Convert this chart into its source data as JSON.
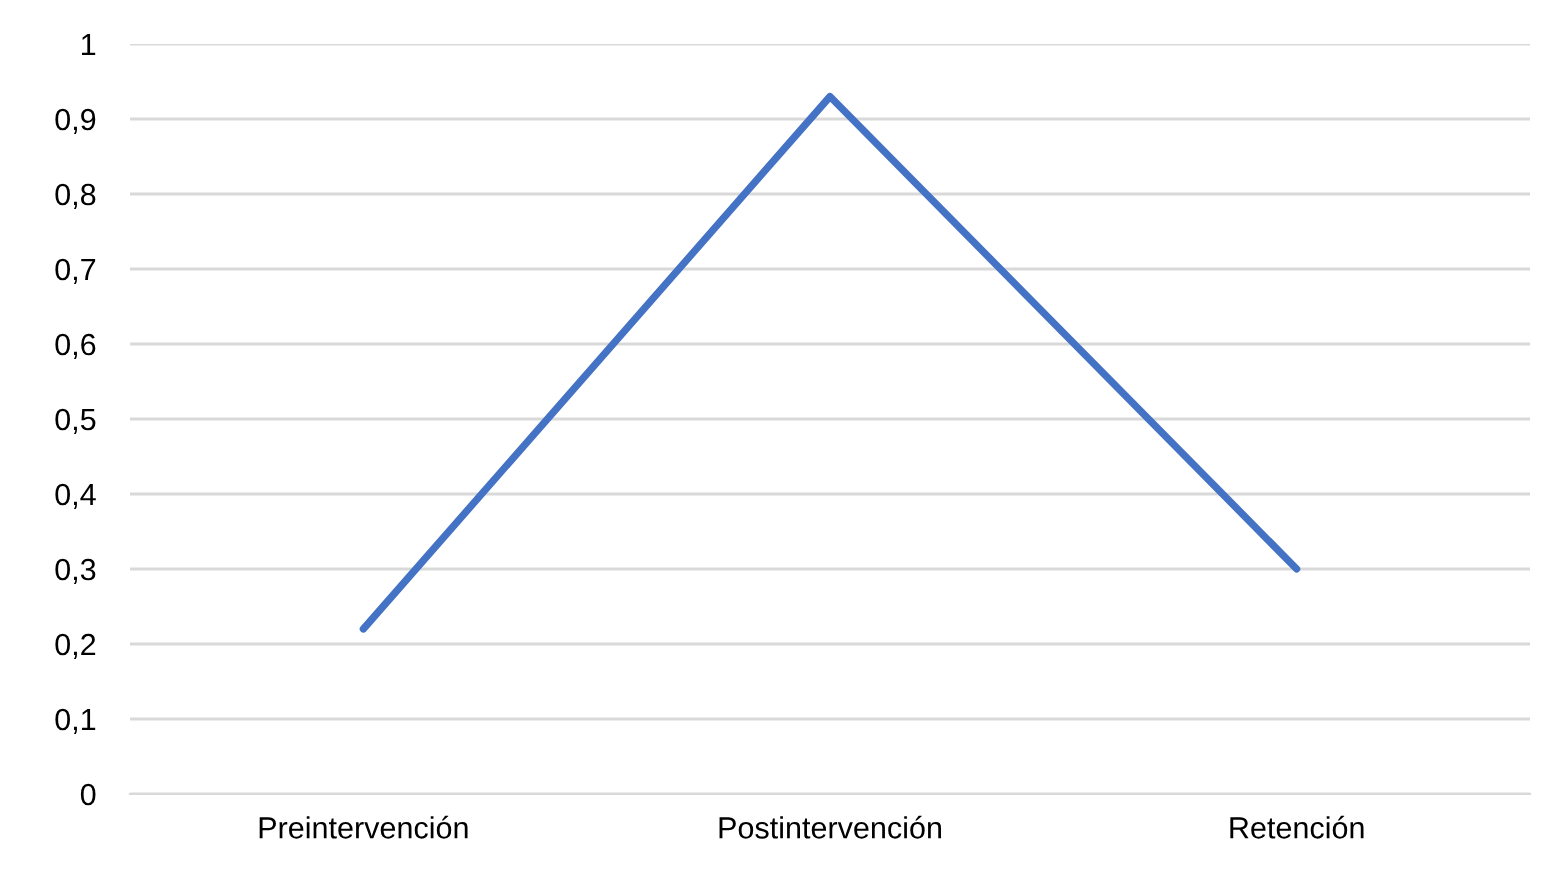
{
  "chart_data": {
    "type": "line",
    "categories": [
      "Preintervención",
      "Postintervención",
      "Retención"
    ],
    "series": [
      {
        "color": "#4472c4",
        "values": [
          0.22,
          0.93,
          0.3
        ]
      }
    ],
    "ylim": [
      0,
      1
    ],
    "yticks": [
      0,
      {
        "value": 0.1,
        "label": "0,1"
      },
      {
        "value": 0.2,
        "label": "0,2"
      },
      {
        "value": 0.3,
        "label": "0,3"
      },
      {
        "value": 0.4,
        "label": "0,4"
      },
      {
        "value": 0.5,
        "label": "0,5"
      },
      {
        "value": 0.6,
        "label": "0,6"
      },
      {
        "value": 0.7,
        "label": "0,7"
      },
      {
        "value": 0.8,
        "label": "0,8"
      },
      {
        "value": 0.9,
        "label": "0,9"
      },
      1
    ],
    "grid": "y",
    "marker": "none",
    "line_style": "solid"
  }
}
